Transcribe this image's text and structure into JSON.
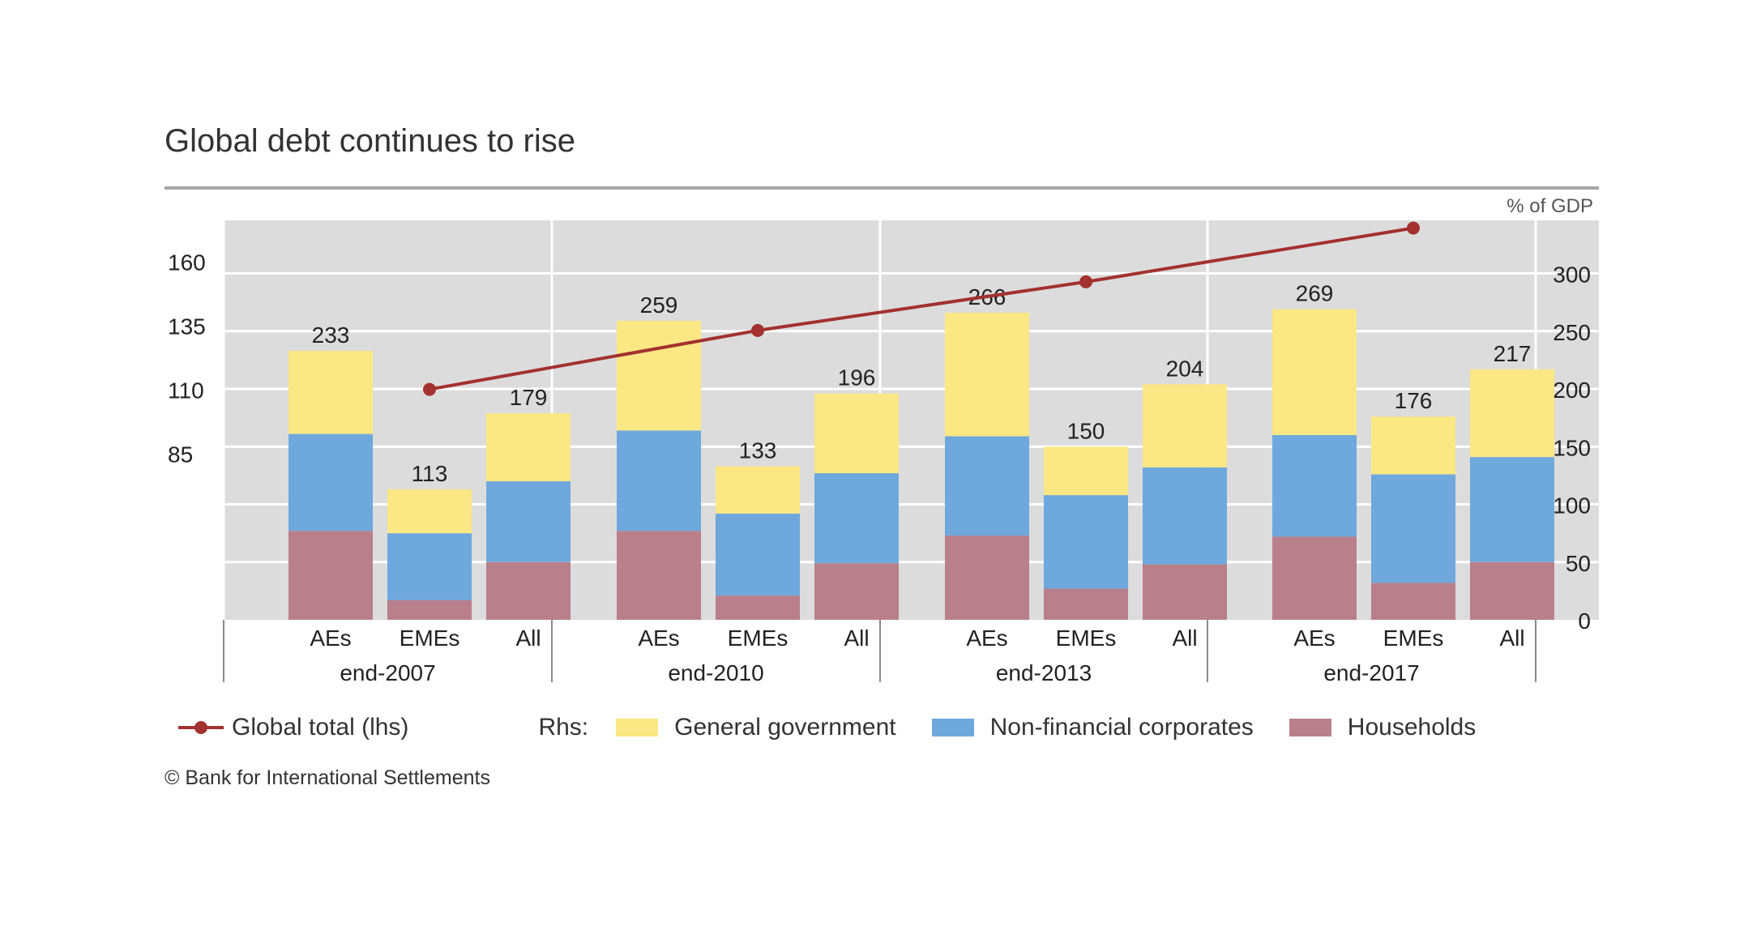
{
  "chart_data": {
    "type": "bar",
    "title": "Global debt continues to rise",
    "unit_label": "% of GDP",
    "groups": [
      "end-2007",
      "end-2010",
      "end-2013",
      "end-2017"
    ],
    "categories": [
      "AEs",
      "EMEs",
      "All"
    ],
    "stacked": true,
    "series": [
      {
        "name": "Households",
        "color": "#b97f8b",
        "values": [
          [
            77,
            17,
            50
          ],
          [
            77,
            21,
            49
          ],
          [
            73,
            27,
            48
          ],
          [
            72,
            32,
            50
          ]
        ]
      },
      {
        "name": "Non-financial corporates",
        "color": "#6fa8dc",
        "values": [
          [
            84,
            58,
            70
          ],
          [
            87,
            71,
            78
          ],
          [
            86,
            81,
            84
          ],
          [
            88,
            94,
            91
          ]
        ]
      },
      {
        "name": "General government",
        "color": "#fbe784",
        "values": [
          [
            72,
            38,
            59
          ],
          [
            95,
            41,
            69
          ],
          [
            107,
            42,
            72
          ],
          [
            109,
            50,
            76
          ]
        ]
      }
    ],
    "totals": [
      [
        233,
        113,
        179
      ],
      [
        259,
        133,
        196
      ],
      [
        266,
        150,
        204
      ],
      [
        269,
        176,
        217
      ]
    ],
    "line_series": {
      "name": "Global total (lhs)",
      "color": "#a3312f",
      "x": [
        "end-2007",
        "end-2010",
        "end-2013",
        "end-2017"
      ],
      "values": [
        110,
        133,
        152,
        173
      ]
    },
    "left_axis": {
      "min": 20,
      "max": 176,
      "ticks": [
        85,
        110,
        135,
        160
      ]
    },
    "right_axis": {
      "min": 0,
      "max": 346,
      "ticks": [
        0,
        50,
        100,
        150,
        200,
        250,
        300
      ]
    },
    "grid": true,
    "legend": {
      "position": "bottom",
      "prefix": "Rhs:"
    }
  },
  "footer": "© Bank for International Settlements"
}
